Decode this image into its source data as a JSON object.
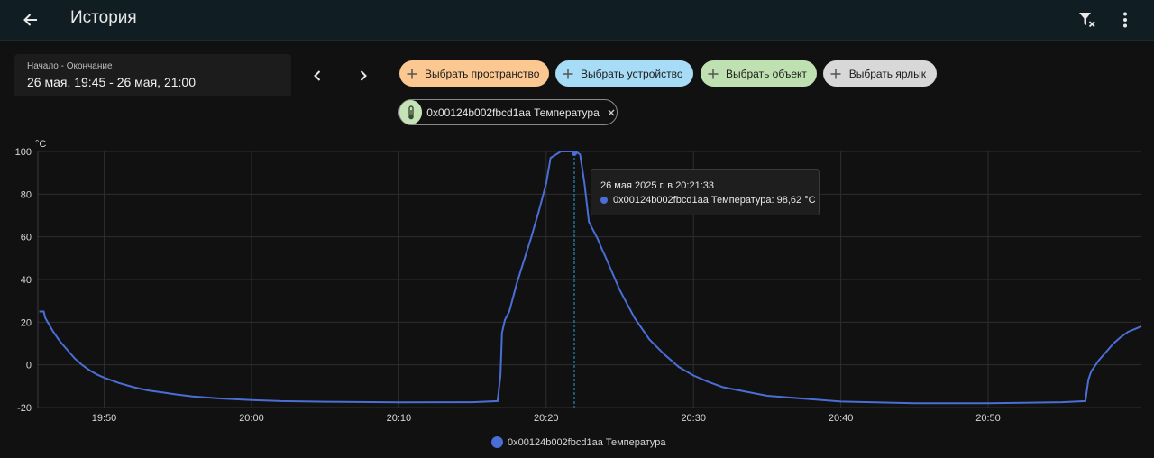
{
  "header": {
    "title": "История"
  },
  "date_range": {
    "label": "Начало - Окончание",
    "value": "26 мая, 19:45 - 26 мая, 21:00"
  },
  "target_chips": [
    {
      "label": "Выбрать пространство"
    },
    {
      "label": "Выбрать устройство"
    },
    {
      "label": "Выбрать объект"
    },
    {
      "label": "Выбрать ярлык"
    }
  ],
  "selected_entity": {
    "label": "0x00124b002fbcd1aa Температура",
    "icon": "thermometer-icon"
  },
  "tooltip": {
    "date": "26 мая 2025 г. в 20:21:33",
    "series_value": "0x00124b002fbcd1aa Температура: 98,62 °C"
  },
  "colors": {
    "series": "#4a6ed6",
    "chip_area": "#fcc892",
    "chip_device": "#a7dcf7",
    "chip_entity": "#bfe0b0",
    "chip_label": "#d8d8d8"
  },
  "chart_data": {
    "type": "line",
    "unit": "°C",
    "ylim": [
      -20,
      100
    ],
    "yticks": [
      "100",
      "80",
      "60",
      "40",
      "20",
      "0",
      "-20"
    ],
    "xlim_minutes": [
      45.5,
      120.4
    ],
    "xticks": [
      "19:50",
      "20:00",
      "20:10",
      "20:20",
      "20:30",
      "20:40",
      "20:50"
    ],
    "grid": true,
    "legend_position": "bottom",
    "series": [
      {
        "name": "0x00124b002fbcd1aa Температура",
        "x_minutes": [
          45.6,
          45.9,
          46.0,
          46.5,
          47.0,
          47.5,
          48.0,
          48.5,
          49.0,
          49.5,
          50.0,
          51.0,
          52.0,
          53.0,
          54.0,
          55.0,
          56.0,
          58.0,
          60.0,
          62.0,
          65.0,
          70.0,
          75.0,
          76.7,
          76.9,
          77.0,
          77.2,
          77.5,
          78.0,
          79.0,
          79.5,
          80.0,
          80.3,
          81.0,
          81.5,
          82.0,
          82.3,
          82.6,
          82.9,
          83.2,
          83.5,
          83.8,
          84.0,
          84.5,
          85.0,
          86.0,
          87.0,
          88.0,
          89.0,
          90.0,
          91.0,
          92.0,
          95.0,
          100.0,
          105.0,
          110.0,
          115.0,
          116.6,
          116.8,
          117.0,
          117.5,
          118.0,
          118.5,
          119.0,
          119.5,
          120.4
        ],
        "y": [
          25.0,
          25.0,
          22.0,
          16.0,
          11.0,
          7.0,
          3.0,
          0.0,
          -2.5,
          -4.5,
          -6.0,
          -8.5,
          -10.5,
          -12.0,
          -13.0,
          -14.0,
          -14.8,
          -15.8,
          -16.5,
          -17.0,
          -17.3,
          -17.6,
          -17.5,
          -17.0,
          -5.0,
          15.0,
          21.0,
          25.0,
          38.0,
          60.0,
          72.0,
          85.0,
          97.0,
          100.0,
          100.0,
          100.0,
          98.6,
          85.0,
          67.0,
          63.0,
          59.0,
          54.0,
          51.0,
          43.0,
          35.0,
          22.0,
          12.0,
          5.0,
          -1.0,
          -5.0,
          -8.0,
          -10.5,
          -14.5,
          -17.2,
          -18.0,
          -18.0,
          -17.5,
          -17.0,
          -7.0,
          -3.0,
          2.0,
          6.0,
          10.0,
          13.0,
          15.5,
          18.0
        ]
      }
    ]
  }
}
